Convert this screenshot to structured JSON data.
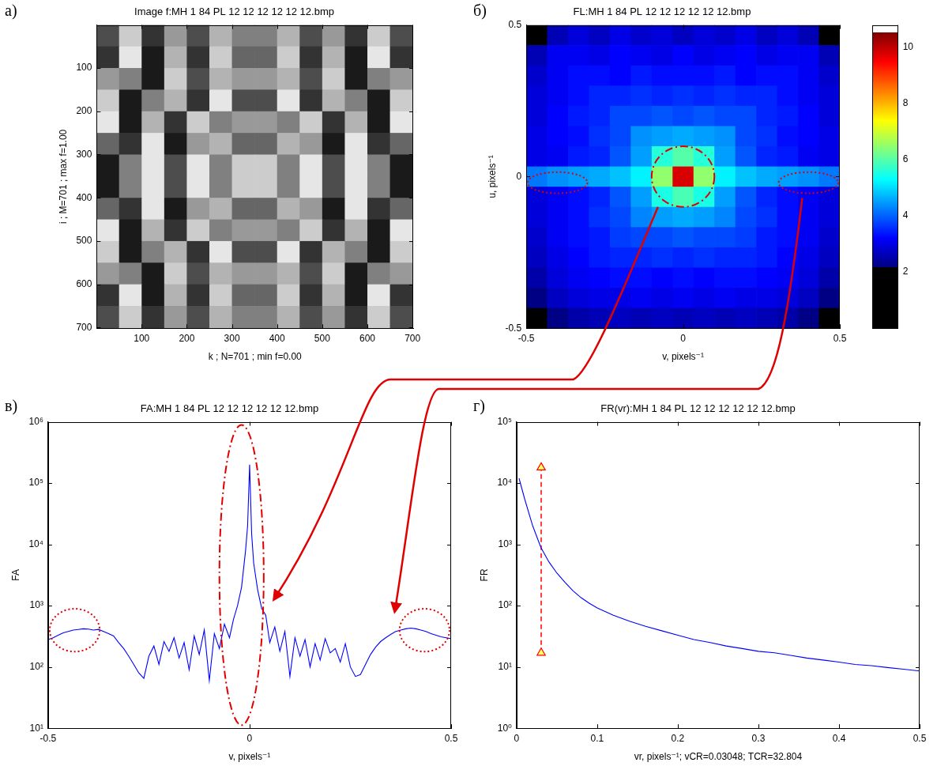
{
  "chart_data": [
    {
      "panel": "а)",
      "type": "image",
      "title": "Image f:MH 1 84 PL 12 12 12 12 12 12.bmp",
      "x_label": "k ; N=701 ; min f=0.00",
      "y_label": "i ; M=701 ; max f=1.00",
      "xlim": [
        0.5,
        701.5
      ],
      "ylim": [
        701.5,
        0.5
      ],
      "xticks": [
        100,
        200,
        300,
        400,
        500,
        600,
        700
      ],
      "yticks": [
        100,
        200,
        300,
        400,
        500,
        600,
        700
      ],
      "grid": false,
      "cell_range": [
        0,
        1
      ],
      "x": [
        25,
        75,
        125,
        175,
        225,
        275,
        325,
        375,
        425,
        475,
        525,
        575,
        625,
        675
      ],
      "y": [
        25,
        75,
        125,
        175,
        225,
        275,
        325,
        375,
        425,
        475,
        525,
        575,
        625,
        675
      ],
      "cells": [
        [
          0.3,
          0.8,
          0.2,
          0.6,
          0.3,
          0.7,
          0.5,
          0.5,
          0.7,
          0.3,
          0.6,
          0.2,
          0.8,
          0.3
        ],
        [
          0.2,
          0.9,
          0.1,
          0.7,
          0.2,
          0.8,
          0.4,
          0.4,
          0.8,
          0.2,
          0.7,
          0.1,
          0.9,
          0.2
        ],
        [
          0.6,
          0.5,
          0.1,
          0.8,
          0.3,
          0.7,
          0.6,
          0.6,
          0.7,
          0.3,
          0.8,
          0.1,
          0.5,
          0.6
        ],
        [
          0.8,
          0.1,
          0.5,
          0.7,
          0.2,
          0.9,
          0.3,
          0.3,
          0.9,
          0.2,
          0.7,
          0.5,
          0.1,
          0.8
        ],
        [
          0.9,
          0.1,
          0.7,
          0.2,
          0.8,
          0.5,
          0.6,
          0.6,
          0.5,
          0.8,
          0.2,
          0.7,
          0.1,
          0.9
        ],
        [
          0.4,
          0.2,
          0.9,
          0.1,
          0.6,
          0.7,
          0.4,
          0.4,
          0.7,
          0.6,
          0.1,
          0.9,
          0.2,
          0.4
        ],
        [
          0.1,
          0.5,
          0.9,
          0.3,
          0.9,
          0.5,
          0.8,
          0.8,
          0.5,
          0.9,
          0.3,
          0.9,
          0.5,
          0.1
        ],
        [
          0.1,
          0.5,
          0.9,
          0.3,
          0.9,
          0.5,
          0.8,
          0.8,
          0.5,
          0.9,
          0.3,
          0.9,
          0.5,
          0.1
        ],
        [
          0.4,
          0.2,
          0.9,
          0.1,
          0.6,
          0.7,
          0.4,
          0.4,
          0.7,
          0.6,
          0.1,
          0.9,
          0.2,
          0.4
        ],
        [
          0.9,
          0.1,
          0.7,
          0.2,
          0.8,
          0.5,
          0.6,
          0.6,
          0.5,
          0.8,
          0.2,
          0.7,
          0.1,
          0.9
        ],
        [
          0.8,
          0.1,
          0.5,
          0.7,
          0.2,
          0.9,
          0.3,
          0.3,
          0.9,
          0.2,
          0.7,
          0.5,
          0.1,
          0.8
        ],
        [
          0.6,
          0.5,
          0.1,
          0.8,
          0.3,
          0.7,
          0.6,
          0.6,
          0.7,
          0.3,
          0.8,
          0.1,
          0.5,
          0.6
        ],
        [
          0.2,
          0.9,
          0.1,
          0.7,
          0.2,
          0.8,
          0.4,
          0.4,
          0.8,
          0.2,
          0.7,
          0.1,
          0.9,
          0.2
        ],
        [
          0.3,
          0.8,
          0.2,
          0.6,
          0.3,
          0.7,
          0.5,
          0.5,
          0.7,
          0.3,
          0.6,
          0.2,
          0.8,
          0.3
        ]
      ]
    },
    {
      "panel": "б)",
      "type": "heatmap",
      "title": "FL:MH 1 84 PL 12 12 12 12 12 12.bmp",
      "x_label": "v, pixels⁻¹",
      "y_label": "u, pixels⁻¹",
      "xlim": [
        -0.5,
        0.5
      ],
      "ylim": [
        -0.5,
        0.5
      ],
      "xticks": [
        -0.5,
        0,
        0.5
      ],
      "yticks": [
        -0.5,
        0,
        0.5
      ],
      "grid": false,
      "colorbar": {
        "range": [
          0,
          10.8
        ],
        "ticks": [
          2,
          4,
          6,
          8,
          10
        ]
      },
      "x": [
        -0.4667,
        -0.4,
        -0.3333,
        -0.2667,
        -0.2,
        -0.1333,
        -0.0667,
        0,
        0.0667,
        0.1333,
        0.2,
        0.2667,
        0.3333,
        0.4,
        0.4667
      ],
      "y": [
        0.4667,
        0.4,
        0.3333,
        0.2667,
        0.2,
        0.1333,
        0.0667,
        0,
        -0.0667,
        -0.1333,
        -0.2,
        -0.2667,
        -0.3333,
        -0.4,
        -0.4667
      ],
      "cells": [
        [
          1.8,
          2.6,
          2.9,
          2.7,
          3.0,
          2.8,
          2.9,
          2.7,
          2.9,
          2.8,
          3.0,
          2.7,
          2.9,
          2.6,
          1.8
        ],
        [
          2.6,
          3.1,
          3.1,
          3.0,
          3.2,
          3.1,
          3.0,
          3.2,
          3.0,
          3.1,
          3.2,
          3.0,
          3.1,
          3.1,
          2.6
        ],
        [
          2.8,
          3.1,
          3.3,
          3.3,
          3.2,
          3.4,
          3.3,
          3.3,
          3.3,
          3.4,
          3.2,
          3.3,
          3.3,
          3.1,
          2.8
        ],
        [
          2.9,
          3.1,
          3.3,
          3.5,
          3.5,
          3.6,
          3.5,
          3.6,
          3.5,
          3.6,
          3.5,
          3.5,
          3.3,
          3.1,
          2.9
        ],
        [
          2.9,
          3.2,
          3.4,
          3.5,
          3.8,
          3.8,
          3.9,
          3.8,
          3.9,
          3.8,
          3.8,
          3.5,
          3.4,
          3.2,
          2.9
        ],
        [
          3.0,
          3.2,
          3.3,
          3.6,
          3.8,
          4.4,
          4.5,
          4.6,
          4.5,
          4.4,
          3.8,
          3.6,
          3.3,
          3.2,
          3.0
        ],
        [
          3.0,
          3.1,
          3.4,
          3.5,
          3.9,
          4.5,
          5.6,
          6.0,
          5.6,
          4.5,
          3.9,
          3.5,
          3.4,
          3.1,
          3.0
        ],
        [
          4.2,
          4.4,
          4.5,
          4.6,
          4.8,
          5.2,
          6.5,
          9.8,
          6.5,
          5.2,
          4.8,
          4.6,
          4.5,
          4.4,
          4.2
        ],
        [
          2.9,
          3.1,
          3.3,
          3.5,
          3.9,
          4.5,
          5.5,
          5.9,
          5.5,
          4.5,
          3.9,
          3.5,
          3.3,
          3.1,
          2.9
        ],
        [
          2.9,
          3.1,
          3.3,
          3.6,
          3.8,
          4.3,
          4.5,
          4.6,
          4.5,
          4.3,
          3.8,
          3.6,
          3.3,
          3.1,
          2.9
        ],
        [
          2.8,
          3.1,
          3.3,
          3.4,
          3.7,
          3.8,
          3.8,
          3.9,
          3.8,
          3.8,
          3.7,
          3.4,
          3.3,
          3.1,
          2.8
        ],
        [
          2.7,
          3.0,
          3.2,
          3.4,
          3.5,
          3.5,
          3.6,
          3.5,
          3.6,
          3.5,
          3.5,
          3.4,
          3.2,
          3.0,
          2.7
        ],
        [
          2.5,
          2.9,
          3.1,
          3.2,
          3.3,
          3.3,
          3.2,
          3.3,
          3.2,
          3.3,
          3.3,
          3.2,
          3.1,
          2.9,
          2.5
        ],
        [
          2.2,
          2.7,
          2.9,
          3.0,
          3.0,
          3.1,
          3.0,
          3.1,
          3.0,
          3.1,
          3.0,
          3.0,
          2.9,
          2.7,
          2.2
        ],
        [
          1.6,
          2.2,
          2.5,
          2.6,
          2.7,
          2.6,
          2.7,
          2.6,
          2.7,
          2.6,
          2.7,
          2.6,
          2.5,
          2.2,
          1.6
        ]
      ]
    },
    {
      "panel": "в)",
      "type": "line",
      "log": "y",
      "title": "FA:MH 1 84 PL 12 12 12 12 12 12.bmp",
      "x_label": "v, pixels⁻¹",
      "y_label": "FA",
      "xlim": [
        -0.5,
        0.5
      ],
      "xticks": [
        -0.5,
        0,
        0.5
      ],
      "ylim": [
        10,
        1000000
      ],
      "yticks": [
        {
          "value": 10,
          "label": "10¹"
        },
        {
          "value": 100,
          "label": "10²"
        },
        {
          "value": 1000,
          "label": "10³"
        },
        {
          "value": 10000,
          "label": "10⁴"
        },
        {
          "value": 100000,
          "label": "10⁵"
        },
        {
          "value": 1000000,
          "label": "10⁶"
        }
      ],
      "grid": false,
      "color": "#0000ff",
      "x": [
        -0.5,
        -0.4875,
        -0.475,
        -0.4625,
        -0.45,
        -0.4375,
        -0.425,
        -0.4125,
        -0.4,
        -0.3875,
        -0.375,
        -0.3625,
        -0.35,
        -0.3375,
        -0.325,
        -0.3125,
        -0.3,
        -0.2875,
        -0.275,
        -0.2625,
        -0.25,
        -0.2375,
        -0.225,
        -0.2125,
        -0.2,
        -0.1875,
        -0.175,
        -0.1625,
        -0.15,
        -0.1375,
        -0.125,
        -0.1125,
        -0.1,
        -0.0875,
        -0.075,
        -0.0625,
        -0.05,
        -0.04,
        -0.03,
        -0.02,
        -0.01,
        -0.005,
        0,
        0.005,
        0.01,
        0.02,
        0.03,
        0.04,
        0.05,
        0.0625,
        0.075,
        0.0875,
        0.1,
        0.1125,
        0.125,
        0.1375,
        0.15,
        0.1625,
        0.175,
        0.1875,
        0.2,
        0.2125,
        0.225,
        0.2375,
        0.25,
        0.2625,
        0.275,
        0.2875,
        0.3,
        0.3125,
        0.325,
        0.3375,
        0.35,
        0.3625,
        0.375,
        0.3875,
        0.4,
        0.4125,
        0.425,
        0.4375,
        0.45,
        0.4625,
        0.475,
        0.4875,
        0.5
      ],
      "values": [
        280,
        300,
        330,
        360,
        380,
        400,
        410,
        420,
        415,
        400,
        410,
        380,
        350,
        320,
        250,
        200,
        150,
        110,
        80,
        65,
        150,
        220,
        110,
        260,
        180,
        300,
        140,
        250,
        90,
        320,
        160,
        400,
        60,
        350,
        200,
        500,
        300,
        600,
        1000,
        2000,
        8000,
        20000,
        200000,
        15000,
        5000,
        1800,
        900,
        700,
        250,
        450,
        180,
        380,
        70,
        300,
        150,
        280,
        100,
        240,
        130,
        290,
        170,
        200,
        120,
        240,
        100,
        70,
        75,
        110,
        160,
        210,
        260,
        300,
        340,
        380,
        400,
        420,
        430,
        420,
        400,
        380,
        350,
        330,
        310,
        300,
        290
      ]
    },
    {
      "panel": "г)",
      "type": "line",
      "log": "y",
      "title": "FR(vr):MH 1 84 PL 12 12 12 12 12 12.bmp",
      "x_label": "vr, pixels⁻¹; vCR=0.03048; TCR=32.804",
      "y_label": "FR",
      "xlim": [
        0,
        0.5
      ],
      "xticks": [
        0,
        0.1,
        0.2,
        0.3,
        0.4,
        0.5
      ],
      "ylim": [
        1,
        100000
      ],
      "yticks": [
        {
          "value": 1,
          "label": "10⁰"
        },
        {
          "value": 10,
          "label": "10¹"
        },
        {
          "value": 100,
          "label": "10²"
        },
        {
          "value": 1000,
          "label": "10³"
        },
        {
          "value": 10000,
          "label": "10⁴"
        },
        {
          "value": 100000,
          "label": "10⁵"
        }
      ],
      "grid": false,
      "series": [
        {
          "color": "#0000ff",
          "x": [
            0.003,
            0.01,
            0.02,
            0.03,
            0.04,
            0.05,
            0.06,
            0.07,
            0.08,
            0.09,
            0.1,
            0.12,
            0.14,
            0.16,
            0.18,
            0.2,
            0.22,
            0.24,
            0.26,
            0.28,
            0.3,
            0.32,
            0.34,
            0.36,
            0.38,
            0.4,
            0.42,
            0.44,
            0.46,
            0.48,
            0.5
          ],
          "values": [
            12000,
            5500,
            2000,
            900,
            520,
            340,
            240,
            175,
            135,
            110,
            92,
            70,
            56,
            46,
            39,
            33,
            28,
            25,
            22,
            20,
            18,
            17,
            15.5,
            14,
            13,
            12,
            11,
            10.5,
            9.8,
            9.2,
            8.6
          ]
        },
        {
          "color": "#ff0000",
          "line_style": "dashed",
          "marker": "triangle",
          "x": [
            0.03048,
            0.03048
          ],
          "values": [
            17,
            18000
          ]
        }
      ]
    }
  ]
}
